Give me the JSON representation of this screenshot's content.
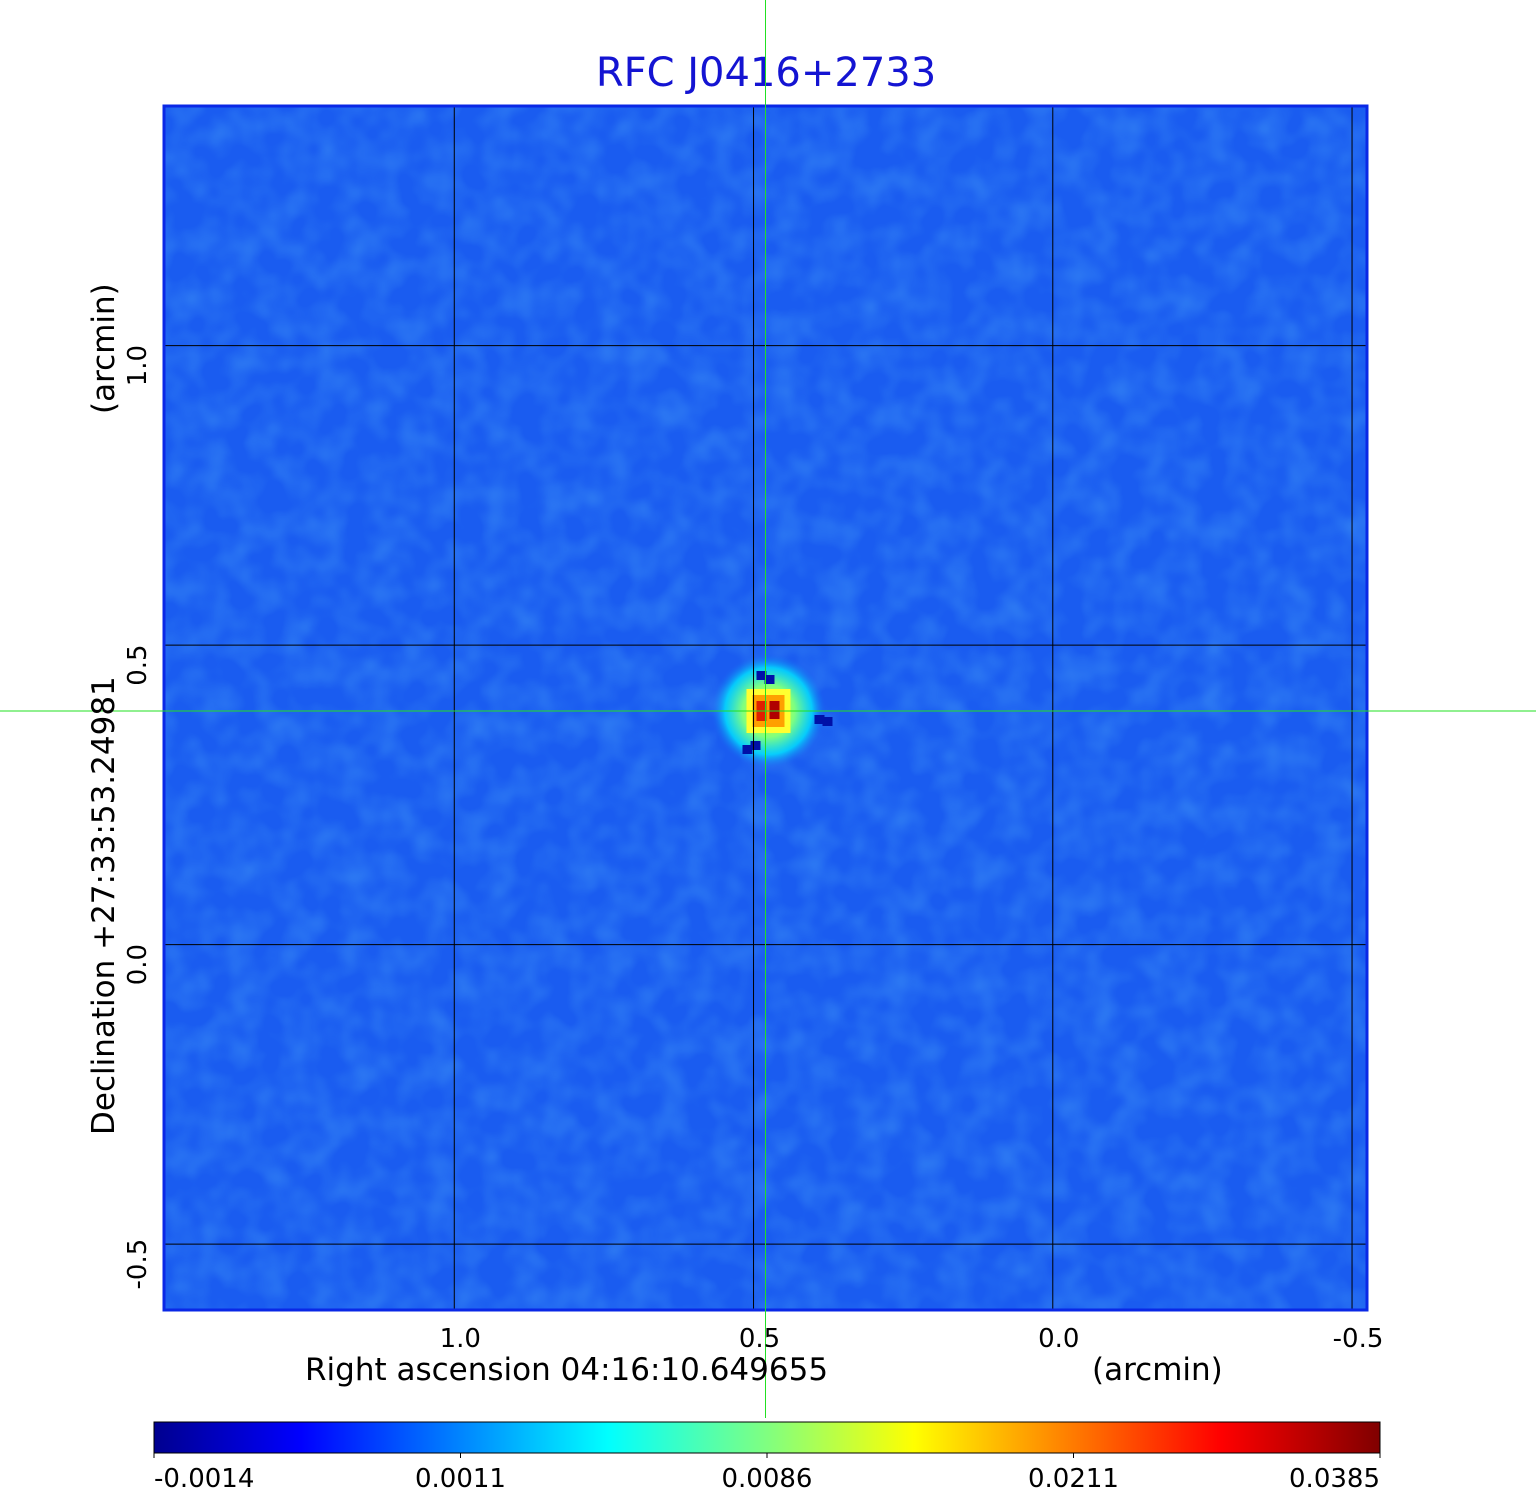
{
  "chart_data": {
    "type": "heatmap",
    "title": "RFC J0416+2733",
    "xlabel": "Right ascension  04:16:10.649655",
    "xunit": "(arcmin)",
    "ylabel": "Declination  +27:33:53.24981",
    "yunit": "(arcmin)",
    "xlim": [
      1.485,
      -0.525
    ],
    "ylim": [
      -0.61,
      1.4
    ],
    "x_ticks": [
      1.0,
      0.5,
      0.0,
      -0.5
    ],
    "x_tick_labels": [
      "1.0",
      "0.5",
      "0.0",
      "-0.5"
    ],
    "y_ticks": [
      1.0,
      0.5,
      0.0,
      -0.5
    ],
    "y_tick_labels": [
      "1.0",
      "0.5",
      "0.0",
      "-0.5"
    ],
    "grid": true,
    "crosshair": {
      "x": 0.48,
      "y": 0.39
    },
    "source_peak": {
      "x": 0.475,
      "y": 0.39,
      "value": 0.0385
    },
    "colorbar": {
      "tick_labels": [
        "-0.0014",
        "0.0011",
        "0.0086",
        "0.0211",
        "0.0385"
      ],
      "min": -0.0014,
      "max": 0.0385,
      "colormap": "jet"
    },
    "colors": {
      "title": "#1414d2",
      "frame": "#0a28e6",
      "background_map": "#1a5cf0",
      "grid": "#000000",
      "crosshair": "#22e022"
    }
  }
}
